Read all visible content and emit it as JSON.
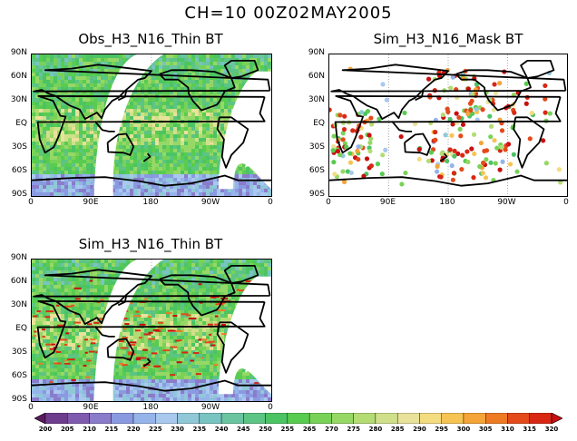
{
  "figure": {
    "main_title": "CH=10   00Z02MAY2005"
  },
  "panels": [
    {
      "id": "obs",
      "title": "Obs_H3_N16_Thin BT",
      "style": "swath"
    },
    {
      "id": "mask",
      "title": "Sim_H3_N16_Mask BT",
      "style": "dots"
    },
    {
      "id": "sim",
      "title": "Sim_H3_N16_Thin BT",
      "style": "swath"
    }
  ],
  "axes": {
    "lat_ticks": [
      "90N",
      "60N",
      "30N",
      "EQ",
      "30S",
      "60S",
      "90S"
    ],
    "lon_ticks": [
      "0",
      "90E",
      "180",
      "90W",
      "0"
    ]
  },
  "colorbar": {
    "labels": [
      "200",
      "205",
      "210",
      "215",
      "220",
      "225",
      "230",
      "235",
      "240",
      "245",
      "250",
      "255",
      "265",
      "270",
      "275",
      "280",
      "285",
      "290",
      "295",
      "300",
      "305",
      "310",
      "315",
      "320"
    ],
    "colors": [
      "#5a1a5e",
      "#6e3c8c",
      "#7f5aae",
      "#8a7cca",
      "#8a9ae0",
      "#95b4ea",
      "#a8c8ee",
      "#90c8d8",
      "#78c4c0",
      "#6ac4a0",
      "#5cc484",
      "#4cc464",
      "#58cc50",
      "#78d258",
      "#96d866",
      "#b4dc74",
      "#d0e08a",
      "#e8e29a",
      "#f4dc80",
      "#f6c454",
      "#f4a438",
      "#ee7a24",
      "#e44a1a",
      "#d82814",
      "#c81010"
    ]
  }
}
